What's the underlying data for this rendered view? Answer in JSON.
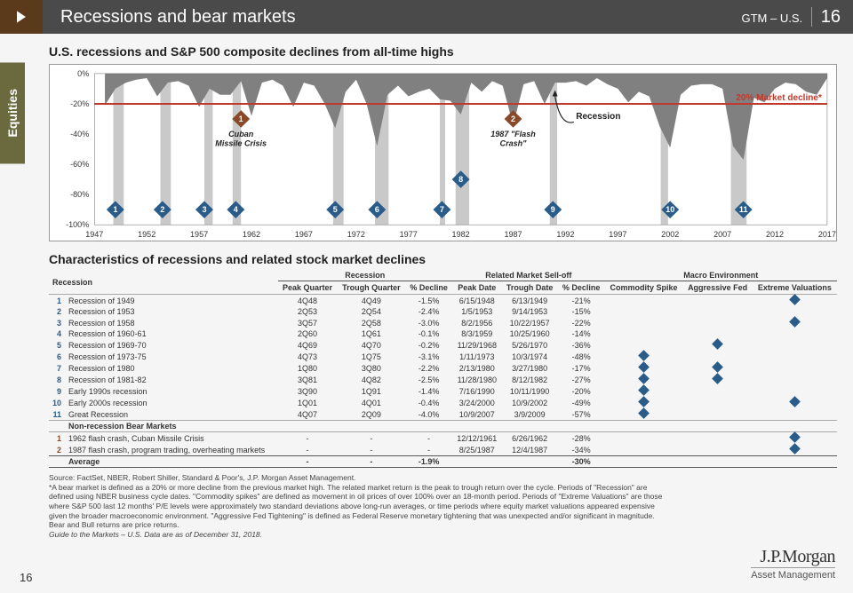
{
  "header": {
    "title": "Recessions and bear markets",
    "right_text": "GTM – U.S.",
    "page_num": "16"
  },
  "sidetab": {
    "label": "Equities",
    "bg": "#6b6a3f"
  },
  "chart": {
    "title": "U.S. recessions and S&P 500 composite declines from all-time highs",
    "ylim": [
      -100,
      0
    ],
    "ytick_step": 20,
    "xlim": [
      1947,
      2017
    ],
    "xtick_step": 5,
    "threshold_line": {
      "value": -20,
      "color": "#c0392b",
      "label": "20% Market decline*"
    },
    "decline_color": "#808080",
    "recession_band_color": "#c3c3c3",
    "marker_color": "#2a5c8a",
    "callout_marker_color": "#8a4a2a",
    "recession_years": [
      [
        1948.8,
        1949.8
      ],
      [
        1953.3,
        1954.3
      ],
      [
        1957.5,
        1958.3
      ],
      [
        1960.2,
        1961.0
      ],
      [
        1969.8,
        1970.8
      ],
      [
        1973.8,
        1975.1
      ],
      [
        1980.0,
        1980.5
      ],
      [
        1981.5,
        1982.8
      ],
      [
        1990.5,
        1991.2
      ],
      [
        2001.1,
        2001.8
      ],
      [
        2007.8,
        2009.3
      ]
    ],
    "recession_label": "Recession",
    "declines": [
      {
        "y": 1948,
        "d": -21
      },
      {
        "y": 1949,
        "d": -10
      },
      {
        "y": 1950,
        "d": -6
      },
      {
        "y": 1951,
        "d": -4
      },
      {
        "y": 1952,
        "d": -3
      },
      {
        "y": 1953,
        "d": -15
      },
      {
        "y": 1954,
        "d": -6
      },
      {
        "y": 1955,
        "d": -5
      },
      {
        "y": 1956,
        "d": -8
      },
      {
        "y": 1957,
        "d": -22
      },
      {
        "y": 1958,
        "d": -10
      },
      {
        "y": 1959,
        "d": -14
      },
      {
        "y": 1960,
        "d": -14
      },
      {
        "y": 1961,
        "d": -5
      },
      {
        "y": 1962,
        "d": -28
      },
      {
        "y": 1963,
        "d": -6
      },
      {
        "y": 1964,
        "d": -4
      },
      {
        "y": 1965,
        "d": -8
      },
      {
        "y": 1966,
        "d": -22
      },
      {
        "y": 1967,
        "d": -6
      },
      {
        "y": 1968,
        "d": -8
      },
      {
        "y": 1969,
        "d": -20
      },
      {
        "y": 1970,
        "d": -36
      },
      {
        "y": 1971,
        "d": -12
      },
      {
        "y": 1972,
        "d": -4
      },
      {
        "y": 1973,
        "d": -20
      },
      {
        "y": 1974,
        "d": -48
      },
      {
        "y": 1975,
        "d": -14
      },
      {
        "y": 1976,
        "d": -8
      },
      {
        "y": 1977,
        "d": -15
      },
      {
        "y": 1978,
        "d": -12
      },
      {
        "y": 1979,
        "d": -10
      },
      {
        "y": 1980,
        "d": -17
      },
      {
        "y": 1981,
        "d": -18
      },
      {
        "y": 1982,
        "d": -27
      },
      {
        "y": 1983,
        "d": -6
      },
      {
        "y": 1984,
        "d": -12
      },
      {
        "y": 1985,
        "d": -5
      },
      {
        "y": 1986,
        "d": -8
      },
      {
        "y": 1987,
        "d": -34
      },
      {
        "y": 1988,
        "d": -7
      },
      {
        "y": 1989,
        "d": -5
      },
      {
        "y": 1990,
        "d": -20
      },
      {
        "y": 1991,
        "d": -6
      },
      {
        "y": 1992,
        "d": -6
      },
      {
        "y": 1993,
        "d": -5
      },
      {
        "y": 1994,
        "d": -8
      },
      {
        "y": 1995,
        "d": -3
      },
      {
        "y": 1996,
        "d": -7
      },
      {
        "y": 1997,
        "d": -10
      },
      {
        "y": 1998,
        "d": -19
      },
      {
        "y": 1999,
        "d": -12
      },
      {
        "y": 2000,
        "d": -15
      },
      {
        "y": 2001,
        "d": -35
      },
      {
        "y": 2002,
        "d": -49
      },
      {
        "y": 2003,
        "d": -14
      },
      {
        "y": 2004,
        "d": -8
      },
      {
        "y": 2005,
        "d": -7
      },
      {
        "y": 2006,
        "d": -7
      },
      {
        "y": 2007,
        "d": -10
      },
      {
        "y": 2008,
        "d": -48
      },
      {
        "y": 2009,
        "d": -57
      },
      {
        "y": 2010,
        "d": -16
      },
      {
        "y": 2011,
        "d": -19
      },
      {
        "y": 2012,
        "d": -10
      },
      {
        "y": 2013,
        "d": -6
      },
      {
        "y": 2014,
        "d": -7
      },
      {
        "y": 2015,
        "d": -12
      },
      {
        "y": 2016,
        "d": -14
      },
      {
        "y": 2017,
        "d": -3
      }
    ],
    "markers": [
      {
        "n": 1,
        "y": 1949
      },
      {
        "n": 2,
        "y": 1953.5
      },
      {
        "n": 3,
        "y": 1957.5
      },
      {
        "n": 4,
        "y": 1960.5
      },
      {
        "n": 5,
        "y": 1970
      },
      {
        "n": 6,
        "y": 1974
      },
      {
        "n": 7,
        "y": 1980.2
      },
      {
        "n": 8,
        "y": 1982,
        "high": true
      },
      {
        "n": 9,
        "y": 1990.8
      },
      {
        "n": 10,
        "y": 2002
      },
      {
        "n": 11,
        "y": 2009
      }
    ],
    "callouts": [
      {
        "n": 1,
        "y": 1961,
        "label1": "Cuban",
        "label2": "Missile Crisis"
      },
      {
        "n": 2,
        "y": 1987,
        "label1": "1987 \"Flash",
        "label2": "Crash\""
      }
    ]
  },
  "table": {
    "title": "Characteristics of recessions and related stock market declines",
    "group_headers": [
      "Recession",
      "Related Market Sell-off",
      "Macro Environment"
    ],
    "col_headers": [
      "Recession",
      "Peak Quarter",
      "Trough Quarter",
      "% Decline",
      "Peak Date",
      "Trough Date",
      "% Decline",
      "Commodity Spike",
      "Aggressive Fed",
      "Extreme Valuations"
    ],
    "rows": [
      {
        "idx": "1",
        "name": "Recession of 1949",
        "pq": "4Q48",
        "tq": "4Q49",
        "rd": "-1.5%",
        "pd": "6/15/1948",
        "td": "6/13/1949",
        "md": "-21%",
        "cs": 0,
        "af": 0,
        "ev": 1
      },
      {
        "idx": "2",
        "name": "Recession of 1953",
        "pq": "2Q53",
        "tq": "2Q54",
        "rd": "-2.4%",
        "pd": "1/5/1953",
        "td": "9/14/1953",
        "md": "-15%",
        "cs": 0,
        "af": 0,
        "ev": 0
      },
      {
        "idx": "3",
        "name": "Recession of 1958",
        "pq": "3Q57",
        "tq": "2Q58",
        "rd": "-3.0%",
        "pd": "8/2/1956",
        "td": "10/22/1957",
        "md": "-22%",
        "cs": 0,
        "af": 0,
        "ev": 1
      },
      {
        "idx": "4",
        "name": "Recession of 1960-61",
        "pq": "2Q60",
        "tq": "1Q61",
        "rd": "-0.1%",
        "pd": "8/3/1959",
        "td": "10/25/1960",
        "md": "-14%",
        "cs": 0,
        "af": 0,
        "ev": 0
      },
      {
        "idx": "5",
        "name": "Recession of 1969-70",
        "pq": "4Q69",
        "tq": "4Q70",
        "rd": "-0.2%",
        "pd": "11/29/1968",
        "td": "5/26/1970",
        "md": "-36%",
        "cs": 0,
        "af": 1,
        "ev": 0
      },
      {
        "idx": "6",
        "name": "Recession of 1973-75",
        "pq": "4Q73",
        "tq": "1Q75",
        "rd": "-3.1%",
        "pd": "1/11/1973",
        "td": "10/3/1974",
        "md": "-48%",
        "cs": 1,
        "af": 0,
        "ev": 0
      },
      {
        "idx": "7",
        "name": "Recession of 1980",
        "pq": "1Q80",
        "tq": "3Q80",
        "rd": "-2.2%",
        "pd": "2/13/1980",
        "td": "3/27/1980",
        "md": "-17%",
        "cs": 1,
        "af": 1,
        "ev": 0
      },
      {
        "idx": "8",
        "name": "Recession of 1981-82",
        "pq": "3Q81",
        "tq": "4Q82",
        "rd": "-2.5%",
        "pd": "11/28/1980",
        "td": "8/12/1982",
        "md": "-27%",
        "cs": 1,
        "af": 1,
        "ev": 0
      },
      {
        "idx": "9",
        "name": "Early 1990s recession",
        "pq": "3Q90",
        "tq": "1Q91",
        "rd": "-1.4%",
        "pd": "7/16/1990",
        "td": "10/11/1990",
        "md": "-20%",
        "cs": 1,
        "af": 0,
        "ev": 0
      },
      {
        "idx": "10",
        "name": "Early 2000s recession",
        "pq": "1Q01",
        "tq": "4Q01",
        "rd": "-0.4%",
        "pd": "3/24/2000",
        "td": "10/9/2002",
        "md": "-49%",
        "cs": 1,
        "af": 0,
        "ev": 1
      },
      {
        "idx": "11",
        "name": "Great Recession",
        "pq": "4Q07",
        "tq": "2Q09",
        "rd": "-4.0%",
        "pd": "10/9/2007",
        "td": "3/9/2009",
        "md": "-57%",
        "cs": 1,
        "af": 0,
        "ev": 0
      }
    ],
    "subhead": "Non-recession Bear Markets",
    "bear_rows": [
      {
        "idx": "1",
        "name": "1962 flash crash, Cuban Missile Crisis",
        "pq": "-",
        "tq": "-",
        "rd": "-",
        "pd": "12/12/1961",
        "td": "6/26/1962",
        "md": "-28%",
        "cs": 0,
        "af": 0,
        "ev": 1
      },
      {
        "idx": "2",
        "name": "1987 flash crash, program trading, overheating markets",
        "pq": "-",
        "tq": "-",
        "rd": "-",
        "pd": "8/25/1987",
        "td": "12/4/1987",
        "md": "-34%",
        "cs": 0,
        "af": 0,
        "ev": 1
      }
    ],
    "average": {
      "label": "Average",
      "pq": "-",
      "tq": "-",
      "rd": "-1.9%",
      "pd": "",
      "td": "",
      "md": "-30%"
    }
  },
  "footnote": {
    "source": "Source: FactSet, NBER, Robert Shiller, Standard & Poor's, J.P. Morgan Asset Management.",
    "body": "*A bear market is defined as a 20% or more decline from the previous market high. The related market return is the peak to trough return over the cycle. Periods of \"Recession\" are defined using NBER business cycle dates. \"Commodity spikes\" are defined as movement in oil prices of over 100% over an 18-month period. Periods of \"Extreme Valuations\" are those where S&P 500 last 12 months' P/E levels were approximately two standard deviations above long-run averages, or time periods where equity market valuations appeared expensive given the broader macroeconomic environment. \"Aggressive Fed Tightening\" is defined as Federal Reserve monetary tightening that was unexpected and/or significant in magnitude. Bear and Bull returns are price returns.",
    "guide": "Guide to the Markets – U.S. Data are as of December 31, 2018."
  },
  "logo": {
    "company": "J.P.Morgan",
    "division": "Asset Management"
  },
  "footer_page": "16"
}
